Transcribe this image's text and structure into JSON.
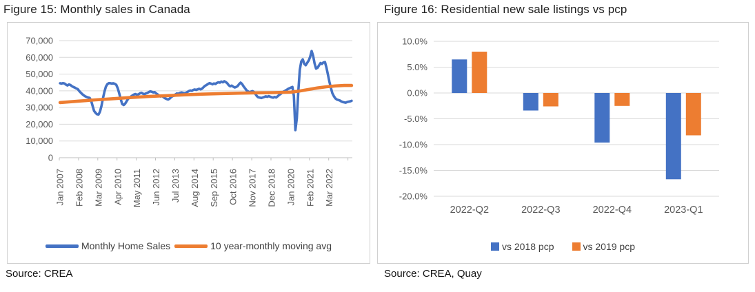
{
  "sources": {
    "fig15": "Source: CREA",
    "fig16": "Source: CREA, Quay"
  },
  "colors": {
    "series_blue": "#4472C4",
    "series_orange": "#ED7D31",
    "grid": "#D9D9D9",
    "axis_line": "#BFBFBF",
    "axis_text": "#595959",
    "legend_text": "#404040",
    "panel_border": "#D0D0D0"
  },
  "chart_data": [
    {
      "type": "line",
      "title": "Figure 15: Monthly sales in Canada",
      "x_frequency": "monthly",
      "x_start": "Jan 2007",
      "grid": true,
      "legend_position": "bottom",
      "ylim": [
        0,
        70000
      ],
      "y_ticks": [
        0,
        10000,
        20000,
        30000,
        40000,
        50000,
        60000,
        70000
      ],
      "y_tick_labels": [
        "0",
        "10,000",
        "20,000",
        "30,000",
        "40,000",
        "50,000",
        "60,000",
        "70,000"
      ],
      "x_tick_months": [
        0,
        13,
        26,
        39,
        52,
        65,
        78,
        91,
        104,
        117,
        130,
        143,
        156,
        169,
        182
      ],
      "x_tick_labels": [
        "Jan 2007",
        "Feb 2008",
        "Mar 2009",
        "Apr 2010",
        "May 2011",
        "Jun 2012",
        "Jul 2013",
        "Aug 2014",
        "Sep 2015",
        "Oct 2016",
        "Nov 2017",
        "Dec 2018",
        "Jan 2020",
        "Feb 2021",
        "Mar 2022"
      ],
      "series": [
        {
          "name": "Monthly Home Sales",
          "color": "#4472C4",
          "values": [
            44500,
            44300,
            44600,
            44400,
            43700,
            43200,
            43800,
            43500,
            42800,
            42300,
            41900,
            41400,
            41000,
            39800,
            38900,
            38000,
            37300,
            36700,
            36300,
            36000,
            35800,
            34200,
            31000,
            28000,
            26800,
            26000,
            25800,
            27500,
            31000,
            35500,
            39500,
            42500,
            44000,
            44600,
            44500,
            44300,
            44500,
            44200,
            43600,
            41500,
            38500,
            35000,
            32100,
            31500,
            32300,
            33800,
            35200,
            36000,
            36600,
            37300,
            37800,
            38100,
            37600,
            37900,
            38500,
            38800,
            38300,
            38000,
            38400,
            38700,
            39300,
            39700,
            39400,
            39000,
            39200,
            38400,
            37800,
            37200,
            36600,
            36900,
            36100,
            35500,
            35100,
            34800,
            35300,
            36200,
            36800,
            37100,
            37900,
            38400,
            38200,
            38700,
            39000,
            38800,
            38500,
            38800,
            39300,
            39800,
            40200,
            40000,
            40500,
            40800,
            40500,
            40900,
            41200,
            40900,
            41300,
            42200,
            43000,
            43500,
            44100,
            44600,
            44300,
            43900,
            44400,
            44100,
            44700,
            45100,
            44900,
            45500,
            45100,
            45700,
            45200,
            44500,
            43300,
            42700,
            43100,
            42500,
            42000,
            42300,
            42800,
            44000,
            44900,
            44100,
            42700,
            41500,
            40300,
            39700,
            39100,
            39500,
            39800,
            39300,
            38100,
            36800,
            36100,
            35900,
            35700,
            36000,
            36300,
            36700,
            36400,
            36800,
            36500,
            36100,
            35900,
            36300,
            36000,
            36700,
            37500,
            38100,
            38800,
            39500,
            40000,
            40500,
            41100,
            41500,
            41900,
            42300,
            37000,
            16500,
            23500,
            40000,
            52500,
            57500,
            58800,
            56200,
            55300,
            56700,
            58100,
            60300,
            63800,
            61000,
            56300,
            53300,
            53800,
            55200,
            56600,
            56100,
            57000,
            57200,
            54000,
            49700,
            45500,
            41800,
            38600,
            36800,
            35500,
            34800,
            34500,
            34200,
            33700,
            33300,
            33100,
            32900,
            33300,
            33500,
            33700,
            34000
          ]
        },
        {
          "name": "10 year-monthly moving avg",
          "color": "#ED7D31",
          "x_months": [
            0,
            12,
            24,
            36,
            48,
            60,
            72,
            84,
            96,
            108,
            120,
            132,
            144,
            156,
            162,
            168,
            174,
            180,
            186,
            192,
            197
          ],
          "values": [
            33000,
            33800,
            34600,
            35300,
            36000,
            36600,
            37100,
            37600,
            38000,
            38300,
            38600,
            38800,
            38900,
            39200,
            39900,
            40800,
            41700,
            42400,
            42900,
            43200,
            43200
          ]
        }
      ]
    },
    {
      "type": "bar",
      "title": "Figure 16: Residential new sale listings vs pcp",
      "grid": true,
      "legend_position": "bottom",
      "ylim": [
        -20,
        10
      ],
      "y_ticks": [
        10,
        5,
        0,
        -5,
        -10,
        -15,
        -20
      ],
      "y_tick_labels": [
        "10.0%",
        "5.0%",
        "0.0%",
        "-5.0%",
        "-10.0%",
        "-15.0%",
        "-20.0%"
      ],
      "categories": [
        "2022-Q2",
        "2022-Q3",
        "2022-Q4",
        "2023-Q1"
      ],
      "series": [
        {
          "name": "vs 2018 pcp",
          "color": "#4472C4",
          "values": [
            6.5,
            -3.4,
            -9.6,
            -16.7
          ]
        },
        {
          "name": "vs 2019 pcp",
          "color": "#ED7D31",
          "values": [
            8.0,
            -2.6,
            -2.5,
            -8.2
          ]
        }
      ]
    }
  ]
}
